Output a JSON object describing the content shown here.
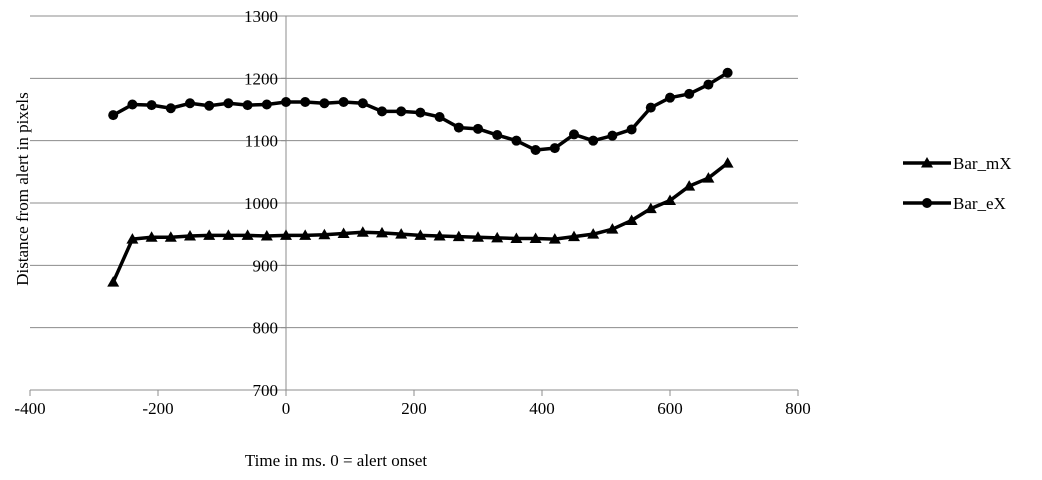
{
  "chart_data": {
    "type": "line",
    "title": "",
    "xlabel": "Time in ms. 0 = alert onset",
    "ylabel": "Distance from alert in pixels",
    "xlim": [
      -400,
      800
    ],
    "ylim": [
      700,
      1300
    ],
    "xticks": [
      -400,
      -200,
      0,
      200,
      400,
      600,
      800
    ],
    "yticks": [
      700,
      800,
      900,
      1000,
      1100,
      1200,
      1300
    ],
    "grid": "horizontal",
    "legend_position": "right",
    "x": [
      -270,
      -240,
      -210,
      -180,
      -150,
      -120,
      -90,
      -60,
      -30,
      0,
      30,
      60,
      90,
      120,
      150,
      180,
      210,
      240,
      270,
      300,
      330,
      360,
      390,
      420,
      450,
      480,
      510,
      540,
      570,
      600,
      630,
      660,
      690
    ],
    "series": [
      {
        "name": "Bar_mX",
        "marker": "triangle",
        "color": "#000000",
        "values": [
          873,
          942,
          945,
          945,
          947,
          948,
          948,
          948,
          947,
          948,
          948,
          949,
          951,
          953,
          952,
          950,
          948,
          947,
          946,
          945,
          944,
          943,
          943,
          942,
          946,
          950,
          958,
          972,
          991,
          1004,
          1027,
          1040,
          1064
        ]
      },
      {
        "name": "Bar_eX",
        "marker": "circle",
        "color": "#000000",
        "values": [
          1141,
          1158,
          1157,
          1152,
          1160,
          1156,
          1160,
          1157,
          1158,
          1162,
          1162,
          1160,
          1162,
          1160,
          1147,
          1147,
          1145,
          1138,
          1121,
          1119,
          1109,
          1100,
          1085,
          1088,
          1110,
          1100,
          1108,
          1118,
          1153,
          1169,
          1175,
          1190,
          1209
        ]
      }
    ]
  }
}
